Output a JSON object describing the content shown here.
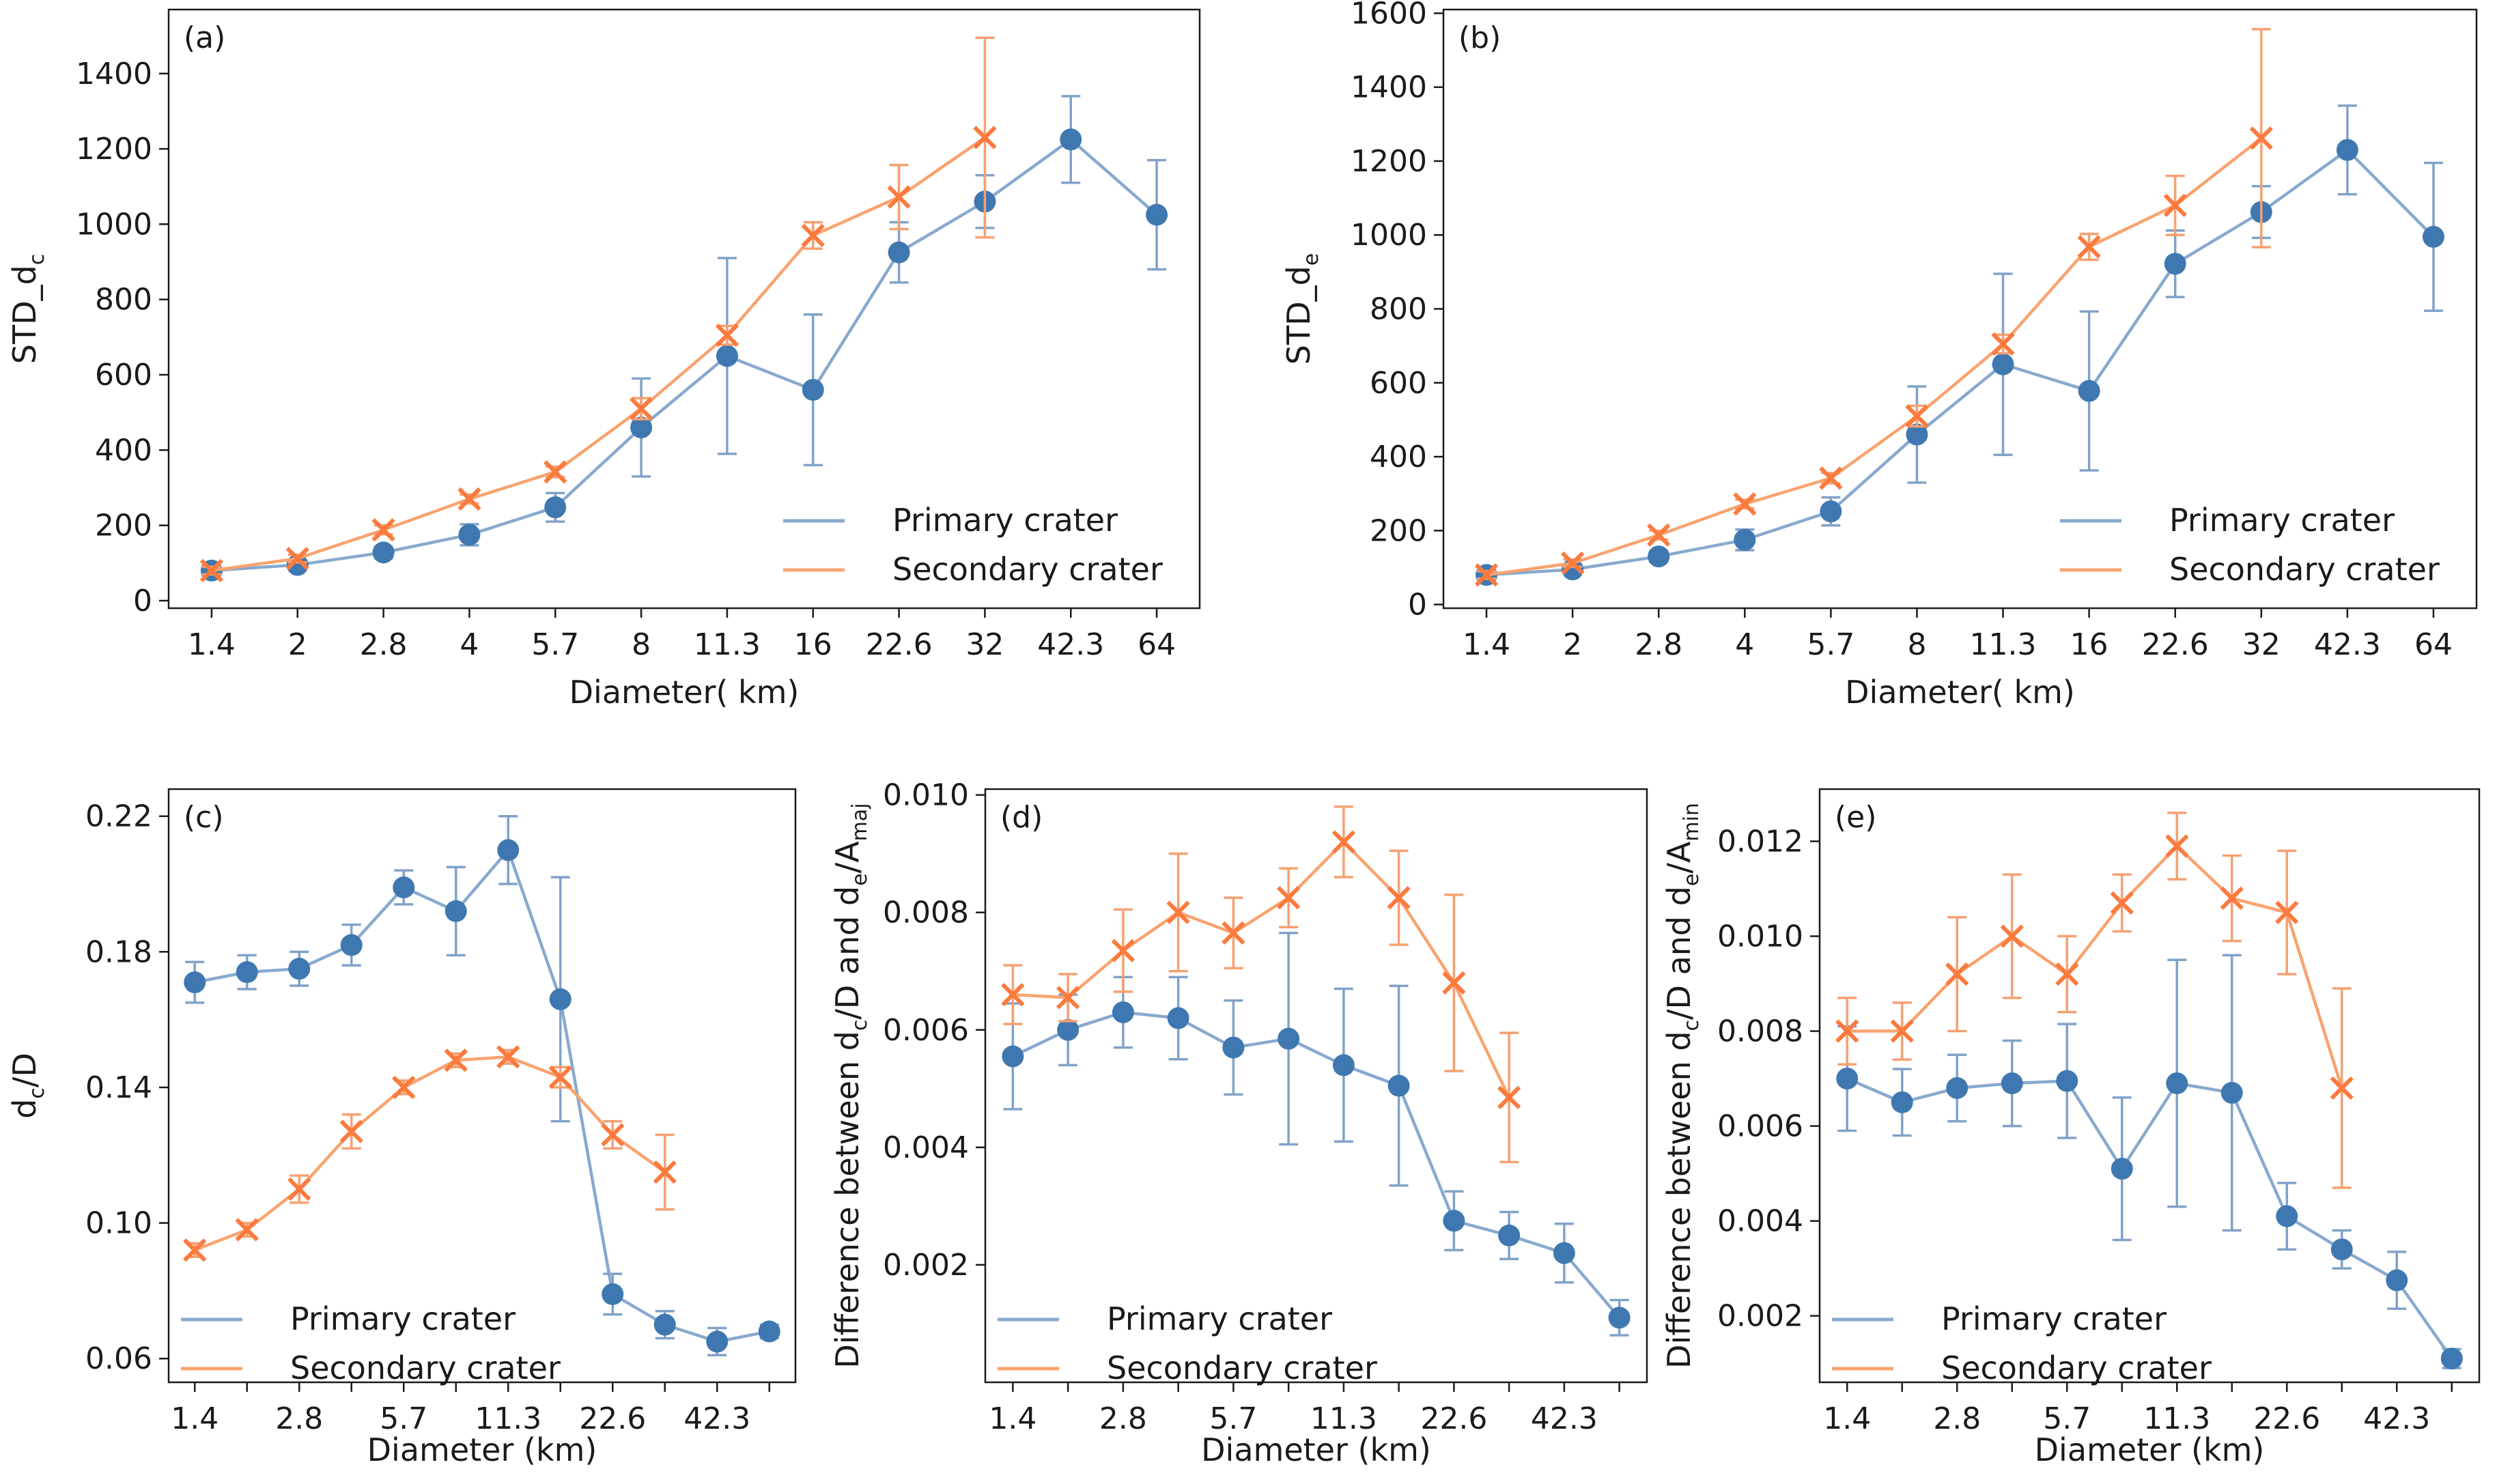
{
  "colors": {
    "primary": "#3f78b0",
    "primary_line": "#88a9cf",
    "secondary": "#fb7a3d",
    "secondary_line": "#f9a36f",
    "errbar_primary": "#80a2c8",
    "errbar_secondary": "#f6a071",
    "axes": "#1a1a1a"
  },
  "chart_data": [
    {
      "id": "a",
      "type": "line",
      "tag": "(a)",
      "xlabel": "Diameter( km)",
      "ylabel": {
        "main": "STD_d",
        "sub": "c"
      },
      "xticklabels": [
        "1.4",
        "2",
        "2.8",
        "4",
        "5.7",
        "8",
        "11.3",
        "16",
        "22.6",
        "32",
        "42.3",
        "64"
      ],
      "ylim": [
        -20,
        1570
      ],
      "yticks": [
        0,
        200,
        400,
        600,
        800,
        1000,
        1200,
        1400
      ],
      "legend": {
        "position": "lower-right",
        "entries": [
          "Primary crater",
          "Secondary crater"
        ]
      },
      "series": [
        {
          "name": "Primary crater",
          "marker": "circle",
          "x": [
            0,
            1,
            2,
            3,
            4,
            5,
            6,
            7,
            8,
            9,
            10,
            11
          ],
          "y": [
            80,
            95,
            128,
            175,
            248,
            460,
            650,
            560,
            925,
            1060,
            1225,
            1025
          ],
          "err": [
            12,
            10,
            15,
            28,
            38,
            130,
            260,
            200,
            80,
            70,
            115,
            145
          ]
        },
        {
          "name": "Secondary crater",
          "marker": "x",
          "x": [
            0,
            1,
            2,
            3,
            4,
            5,
            6,
            7,
            8,
            9
          ],
          "y": [
            80,
            112,
            188,
            270,
            342,
            510,
            705,
            970,
            1072,
            1230
          ],
          "err": [
            10,
            10,
            12,
            12,
            14,
            28,
            25,
            35,
            85,
            265
          ]
        }
      ]
    },
    {
      "id": "b",
      "type": "line",
      "tag": "(b)",
      "xlabel": "Diameter( km)",
      "ylabel": {
        "main": "STD_d",
        "sub": "e"
      },
      "xticklabels": [
        "1.4",
        "2",
        "2.8",
        "4",
        "5.7",
        "8",
        "11.3",
        "16",
        "22.6",
        "32",
        "42.3",
        "64"
      ],
      "ylim": [
        -10,
        1610
      ],
      "yticks": [
        0,
        200,
        400,
        600,
        800,
        1000,
        1200,
        1400,
        1600
      ],
      "legend": {
        "position": "lower-right",
        "entries": [
          "Primary crater",
          "Secondary crater"
        ]
      },
      "series": [
        {
          "name": "Primary crater",
          "marker": "circle",
          "x": [
            0,
            1,
            2,
            3,
            4,
            5,
            6,
            7,
            8,
            9,
            10,
            11
          ],
          "y": [
            80,
            95,
            130,
            175,
            252,
            460,
            650,
            578,
            922,
            1062,
            1230,
            995
          ],
          "err": [
            12,
            10,
            15,
            28,
            38,
            130,
            245,
            215,
            90,
            70,
            120,
            200
          ]
        },
        {
          "name": "Secondary crater",
          "marker": "x",
          "x": [
            0,
            1,
            2,
            3,
            4,
            5,
            6,
            7,
            8,
            9
          ],
          "y": [
            80,
            112,
            188,
            272,
            342,
            510,
            705,
            968,
            1080,
            1262
          ],
          "err": [
            10,
            10,
            12,
            12,
            14,
            28,
            25,
            35,
            80,
            295
          ]
        }
      ]
    },
    {
      "id": "c",
      "type": "line",
      "tag": "(c)",
      "xlabel": "Diameter (km)",
      "ylabel": {
        "main": "d",
        "sub": "c",
        "after": "/D"
      },
      "xticklabels": [
        "1.4",
        "2.8",
        "5.7",
        "11.3",
        "22.6",
        "42.3"
      ],
      "xtick_positions": [
        0,
        2,
        4,
        6,
        8,
        10
      ],
      "xlim": [
        -0.5,
        11.5
      ],
      "ylim": [
        0.053,
        0.228
      ],
      "yticks": [
        0.06,
        0.1,
        0.14,
        0.18,
        0.22
      ],
      "ytick_labels": [
        "0.06",
        "0.10",
        "0.14",
        "0.18",
        "0.22"
      ],
      "legend": {
        "position": "lower-left",
        "entries": [
          "Primary crater",
          "Secondary crater"
        ]
      },
      "series": [
        {
          "name": "Primary crater",
          "marker": "circle",
          "x": [
            0,
            1,
            2,
            3,
            4,
            5,
            6,
            7,
            8,
            9,
            10,
            11
          ],
          "y": [
            0.171,
            0.174,
            0.175,
            0.182,
            0.199,
            0.192,
            0.21,
            0.166,
            0.079,
            0.07,
            0.065,
            0.068
          ],
          "err": [
            0.006,
            0.005,
            0.005,
            0.006,
            0.005,
            0.013,
            0.01,
            0.036,
            0.006,
            0.004,
            0.004,
            0.002
          ]
        },
        {
          "name": "Secondary crater",
          "marker": "x",
          "x": [
            0,
            1,
            2,
            3,
            4,
            5,
            6,
            7,
            8,
            9
          ],
          "y": [
            0.092,
            0.098,
            0.11,
            0.127,
            0.14,
            0.148,
            0.149,
            0.143,
            0.126,
            0.115
          ],
          "err": [
            0.002,
            0.002,
            0.004,
            0.005,
            0.002,
            0.002,
            0.002,
            0.003,
            0.004,
            0.011
          ]
        }
      ]
    },
    {
      "id": "d",
      "type": "line",
      "tag": "(d)",
      "xlabel": "Diameter (km)",
      "ylabel": {
        "main": "Difference between d",
        "sub": "c",
        "mid": "/D and d",
        "sub2": "e",
        "mid2": "/A",
        "sub3": "maj"
      },
      "xticklabels": [
        "1.4",
        "2.8",
        "5.7",
        "11.3",
        "22.6",
        "42.3"
      ],
      "xtick_positions": [
        0,
        2,
        4,
        6,
        8,
        10
      ],
      "xlim": [
        -0.5,
        11.5
      ],
      "ylim": [
        0.0,
        0.0101
      ],
      "yticks": [
        0.002,
        0.004,
        0.006,
        0.008,
        0.01
      ],
      "ytick_labels": [
        "0.002",
        "0.004",
        "0.006",
        "0.008",
        "0.010"
      ],
      "legend": {
        "position": "lower-left",
        "entries": [
          "Primary crater",
          "Secondary crater"
        ]
      },
      "series": [
        {
          "name": "Primary crater",
          "marker": "circle",
          "x": [
            0,
            1,
            2,
            3,
            4,
            5,
            6,
            7,
            8,
            9,
            10,
            11
          ],
          "y": [
            0.00555,
            0.006,
            0.0063,
            0.0062,
            0.0057,
            0.00585,
            0.0054,
            0.00505,
            0.00275,
            0.0025,
            0.0022,
            0.0011
          ],
          "err": [
            0.0009,
            0.0006,
            0.0006,
            0.0007,
            0.0008,
            0.0018,
            0.0013,
            0.0017,
            0.0005,
            0.0004,
            0.0005,
            0.0003
          ]
        },
        {
          "name": "Secondary crater",
          "marker": "x",
          "x": [
            0,
            1,
            2,
            3,
            4,
            5,
            6,
            7,
            8,
            9
          ],
          "y": [
            0.0066,
            0.00655,
            0.00735,
            0.008,
            0.00765,
            0.00825,
            0.0092,
            0.00825,
            0.0068,
            0.00485
          ],
          "err": [
            0.0005,
            0.0004,
            0.0007,
            0.001,
            0.0006,
            0.0005,
            0.0006,
            0.0008,
            0.0015,
            0.0011
          ]
        }
      ]
    },
    {
      "id": "e",
      "type": "line",
      "tag": "(e)",
      "xlabel": "Diameter (km)",
      "ylabel": {
        "main": "Difference between d",
        "sub": "c",
        "mid": "/D and d",
        "sub2": "e",
        "mid2": "/A",
        "sub3": "min"
      },
      "xticklabels": [
        "1.4",
        "2.8",
        "5.7",
        "11.3",
        "22.6",
        "42.3"
      ],
      "xtick_positions": [
        0,
        2,
        4,
        6,
        8,
        10
      ],
      "xlim": [
        -0.5,
        11.5
      ],
      "ylim": [
        0.0006,
        0.0131
      ],
      "yticks": [
        0.002,
        0.004,
        0.006,
        0.008,
        0.01,
        0.012
      ],
      "ytick_labels": [
        "0.002",
        "0.004",
        "0.006",
        "0.008",
        "0.010",
        "0.012"
      ],
      "legend": {
        "position": "lower-left",
        "entries": [
          "Primary crater",
          "Secondary crater"
        ]
      },
      "series": [
        {
          "name": "Primary crater",
          "marker": "circle",
          "x": [
            0,
            1,
            2,
            3,
            4,
            5,
            6,
            7,
            8,
            9,
            10,
            11
          ],
          "y": [
            0.007,
            0.0065,
            0.0068,
            0.0069,
            0.00695,
            0.0051,
            0.0069,
            0.0067,
            0.0041,
            0.0034,
            0.00275,
            0.0011
          ],
          "err": [
            0.0011,
            0.0007,
            0.0007,
            0.0009,
            0.0012,
            0.0015,
            0.0026,
            0.0029,
            0.0007,
            0.0004,
            0.0006,
            0.0002
          ]
        },
        {
          "name": "Secondary crater",
          "marker": "x",
          "x": [
            0,
            1,
            2,
            3,
            4,
            5,
            6,
            7,
            8,
            9
          ],
          "y": [
            0.008,
            0.008,
            0.0092,
            0.01,
            0.0092,
            0.0107,
            0.0119,
            0.0108,
            0.0105,
            0.0068
          ],
          "err": [
            0.0007,
            0.0006,
            0.0012,
            0.0013,
            0.0008,
            0.0006,
            0.0007,
            0.0009,
            0.0013,
            0.0021
          ]
        }
      ]
    }
  ]
}
